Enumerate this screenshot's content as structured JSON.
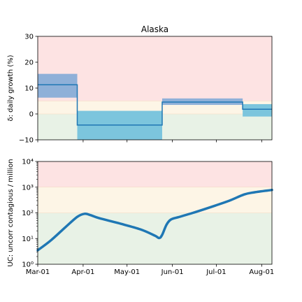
{
  "chart_data": [
    {
      "type": "line",
      "title": "Alaska",
      "ylabel": "δ: daily growth (%)",
      "ylim": [
        -10,
        30
      ],
      "yticks": [
        -10,
        0,
        10,
        20,
        30
      ],
      "ytick_labels": [
        "−10",
        "0",
        "10",
        "20",
        "30"
      ],
      "xlim": [
        "2020-03-01",
        "2020-08-08"
      ],
      "bands": [
        {
          "name": "red-zone",
          "from": 5,
          "to": 30,
          "color": "#fde3e3"
        },
        {
          "name": "yellow-zone",
          "from": 0,
          "to": 5,
          "color": "#fdf5e6"
        },
        {
          "name": "green-zone",
          "from": -10,
          "to": 0,
          "color": "#e8f2e6"
        }
      ],
      "steps": [
        {
          "start": "2020-03-01",
          "end": "2020-03-28",
          "value": 11.3,
          "lo": 6.3,
          "hi": 15.5,
          "fill": "#8fb0d8"
        },
        {
          "start": "2020-03-28",
          "end": "2020-05-25",
          "value": -4.3,
          "lo": -10,
          "hi": 1.2,
          "fill": "#7cc5dd"
        },
        {
          "start": "2020-05-25",
          "end": "2020-07-19",
          "value": 4.6,
          "lo": 3.5,
          "hi": 6.0,
          "fill": "#8fb0d8"
        },
        {
          "start": "2020-07-19",
          "end": "2020-08-08",
          "value": 1.8,
          "lo": -1.0,
          "hi": 3.8,
          "fill": "#7cc5dd"
        }
      ],
      "line_color": "#1f77b4"
    },
    {
      "type": "line",
      "ylabel": "UC: uncorr contagious / million",
      "yscale": "log",
      "ylim": [
        1,
        10000
      ],
      "yticks": [
        1,
        10,
        100,
        1000,
        10000
      ],
      "ytick_labels": [
        "10⁰",
        "10¹",
        "10²",
        "10³",
        "10⁴"
      ],
      "xlim": [
        "2020-03-01",
        "2020-08-08"
      ],
      "xticks": [
        "2020-03-01",
        "2020-04-01",
        "2020-05-01",
        "2020-06-01",
        "2020-07-01",
        "2020-08-01"
      ],
      "xtick_labels": [
        "Mar-01",
        "Apr-01",
        "May-01",
        "Jun-01",
        "Jul-01",
        "Aug-01"
      ],
      "bands": [
        {
          "name": "red-zone",
          "from": 1000,
          "to": 10000,
          "color": "#fde3e3"
        },
        {
          "name": "yellow-zone",
          "from": 100,
          "to": 1000,
          "color": "#fdf5e6"
        },
        {
          "name": "green-zone",
          "from": 1,
          "to": 100,
          "color": "#e8f2e6"
        }
      ],
      "series": [
        {
          "line_color": "#1f77b4",
          "points": [
            [
              "2020-03-01",
              3.5
            ],
            [
              "2020-03-10",
              8.5
            ],
            [
              "2020-03-20",
              28
            ],
            [
              "2020-03-28",
              70
            ],
            [
              "2020-04-02",
              92
            ],
            [
              "2020-04-06",
              82
            ],
            [
              "2020-04-12",
              62
            ],
            [
              "2020-04-25",
              40
            ],
            [
              "2020-05-10",
              23
            ],
            [
              "2020-05-20",
              13
            ],
            [
              "2020-05-23",
              10.5
            ],
            [
              "2020-05-25",
              14
            ],
            [
              "2020-05-28",
              35
            ],
            [
              "2020-05-31",
              55
            ],
            [
              "2020-06-05",
              68
            ],
            [
              "2020-06-15",
              100
            ],
            [
              "2020-06-30",
              190
            ],
            [
              "2020-07-10",
              300
            ],
            [
              "2020-07-20",
              520
            ],
            [
              "2020-07-27",
              630
            ],
            [
              "2020-08-08",
              780
            ]
          ]
        }
      ]
    }
  ]
}
